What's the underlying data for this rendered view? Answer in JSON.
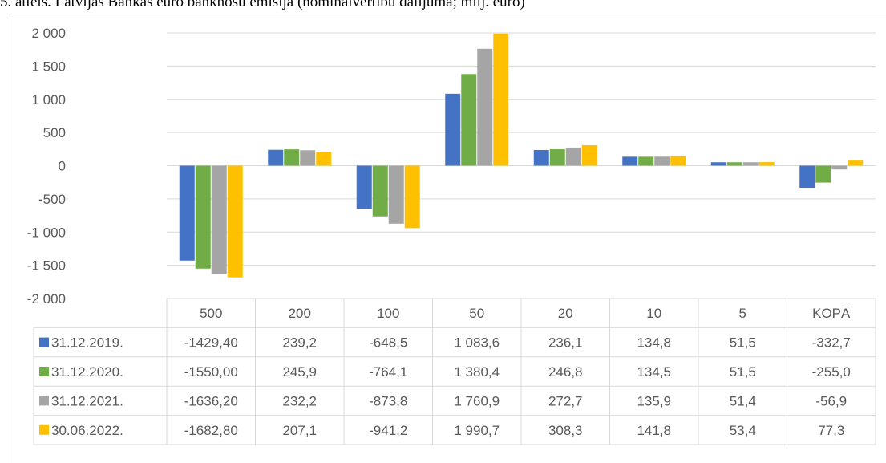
{
  "title": "5. attēls. Latvijas Bankas euro banknošu emisija (nominālvērtību dalījumā; milj. euro)",
  "chart_data": {
    "type": "bar",
    "title": "5. attēls. Latvijas Bankas euro banknošu emisija (nominālvērtību dalījumā; milj. euro)",
    "categories": [
      "500",
      "200",
      "100",
      "50",
      "20",
      "10",
      "5",
      "KOPĀ"
    ],
    "ylim": [
      -2000,
      2000
    ],
    "yticks": [
      2000,
      1500,
      1000,
      500,
      0,
      -500,
      -1000,
      -1500,
      -2000
    ],
    "ytick_labels": [
      "2 000",
      "1 500",
      "1 000",
      "500",
      "0",
      "-500",
      "-1 000",
      "-1 500",
      "-2 000"
    ],
    "grid": true,
    "legend": "data-table",
    "series": [
      {
        "name": "31.12.2019.",
        "color": "#4472c4",
        "values": [
          -1429.4,
          239.2,
          -648.5,
          1083.6,
          236.1,
          134.8,
          51.5,
          -332.7
        ],
        "labels": [
          "-1429,40",
          "239,2",
          "-648,5",
          "1 083,6",
          "236,1",
          "134,8",
          "51,5",
          "-332,7"
        ]
      },
      {
        "name": "31.12.2020.",
        "color": "#70ad47",
        "values": [
          -1550.0,
          245.9,
          -764.1,
          1380.4,
          246.8,
          134.5,
          51.5,
          -255.0
        ],
        "labels": [
          "-1550,00",
          "245,9",
          "-764,1",
          "1 380,4",
          "246,8",
          "134,5",
          "51,5",
          "-255,0"
        ]
      },
      {
        "name": "31.12.2021.",
        "color": "#a5a5a5",
        "values": [
          -1636.2,
          232.2,
          -873.8,
          1760.9,
          272.7,
          135.9,
          51.4,
          -56.9
        ],
        "labels": [
          "-1636,20",
          "232,2",
          "-873,8",
          "1 760,9",
          "272,7",
          "135,9",
          "51,4",
          "-56,9"
        ]
      },
      {
        "name": "30.06.2022.",
        "color": "#ffc000",
        "values": [
          -1682.8,
          207.1,
          -941.2,
          1990.7,
          308.3,
          141.8,
          53.4,
          77.3
        ],
        "labels": [
          "-1682,80",
          "207,1",
          "-941,2",
          "1 990,7",
          "308,3",
          "141,8",
          "53,4",
          "77,3"
        ]
      }
    ]
  }
}
